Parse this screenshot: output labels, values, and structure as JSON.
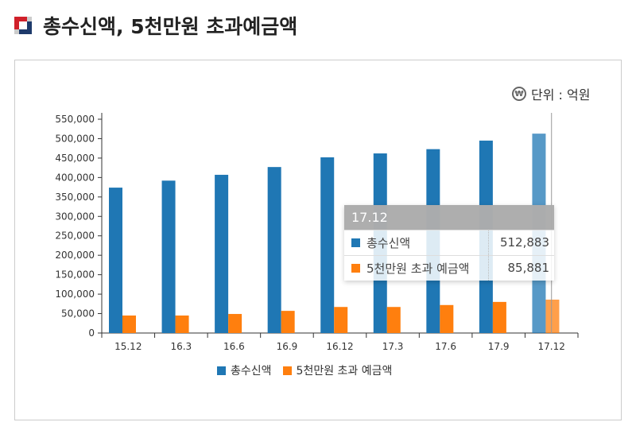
{
  "header": {
    "title": "총수신액, 5천만원 초과예금액"
  },
  "unit_label": "단위 : 억원",
  "unit_icon": "won-icon",
  "colors": {
    "total": "#1f77b4",
    "over": "#ff7f0e"
  },
  "chart_data": {
    "type": "bar",
    "categories": [
      "15.12",
      "16.3",
      "16.6",
      "16.9",
      "16.12",
      "17.3",
      "17.6",
      "17.9",
      "17.12"
    ],
    "series": [
      {
        "name": "총수신액",
        "values": [
          374000,
          392000,
          407000,
          427000,
          452000,
          462000,
          473000,
          495000,
          512883
        ]
      },
      {
        "name": "5천만원 초과 예금액",
        "values": [
          45000,
          45000,
          49000,
          57000,
          67000,
          67000,
          72000,
          80000,
          85881
        ]
      }
    ],
    "ylim": [
      0,
      550000
    ],
    "yticks": [
      "0",
      "50,000",
      "100,000",
      "150,000",
      "200,000",
      "250,000",
      "300,000",
      "350,000",
      "400,000",
      "450,000",
      "500,000",
      "550,000"
    ],
    "legend": "bottom",
    "grid": false,
    "highlighted_category": "17.12"
  },
  "tooltip": {
    "title": "17.12",
    "rows": [
      {
        "name": "총수신액",
        "value": "512,883"
      },
      {
        "name": "5천만원 초과 예금액",
        "value": "85,881"
      }
    ]
  }
}
